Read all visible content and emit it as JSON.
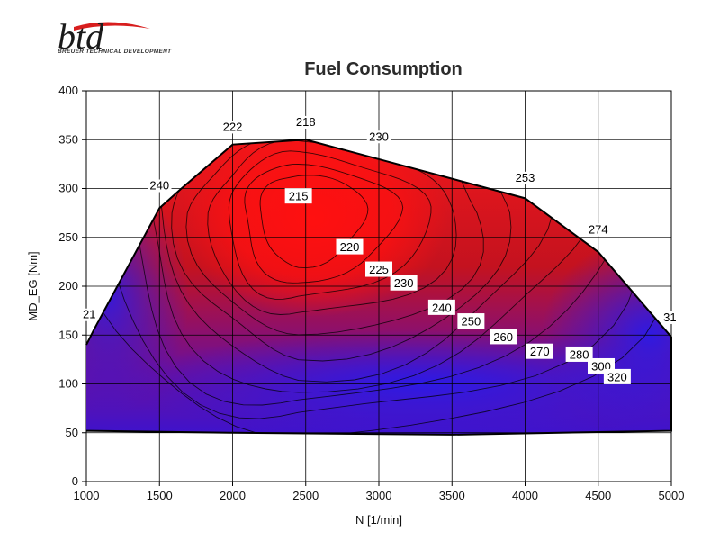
{
  "logo": {
    "mark": "btd",
    "tagline": "BREUER TECHNICAL DEVELOPMENT"
  },
  "chart_data": {
    "type": "heatmap",
    "subtype": "contour-map",
    "title": "Fuel Consumption",
    "xlabel": "N [1/min]",
    "ylabel": "MD_EG [Nm]",
    "xlim": [
      1000,
      5000
    ],
    "ylim": [
      0,
      400
    ],
    "x_ticks": [
      1000,
      1500,
      2000,
      2500,
      3000,
      3500,
      4000,
      4500,
      5000
    ],
    "y_ticks": [
      0,
      50,
      100,
      150,
      200,
      250,
      300,
      350,
      400
    ],
    "grid": true,
    "colors": {
      "low": "#ff1a1a",
      "mid": "#8c0f8a",
      "high": "#1a1aff",
      "outline": "#000000"
    },
    "full_load_curve": [
      {
        "x": 1000,
        "y": 140
      },
      {
        "x": 1050,
        "y": 155
      },
      {
        "x": 1500,
        "y": 280
      },
      {
        "x": 1650,
        "y": 300
      },
      {
        "x": 2000,
        "y": 345
      },
      {
        "x": 2500,
        "y": 350
      },
      {
        "x": 3000,
        "y": 330
      },
      {
        "x": 3500,
        "y": 310
      },
      {
        "x": 4000,
        "y": 290
      },
      {
        "x": 4500,
        "y": 235
      },
      {
        "x": 5000,
        "y": 148
      }
    ],
    "min_load_curve": [
      {
        "x": 1000,
        "y": 52
      },
      {
        "x": 2000,
        "y": 50
      },
      {
        "x": 3500,
        "y": 48
      },
      {
        "x": 5000,
        "y": 52
      }
    ],
    "contour_levels": [
      215,
      220,
      225,
      230,
      240,
      250,
      260,
      270,
      280,
      300,
      320
    ],
    "contour_labels": [
      {
        "text": "215",
        "x": 2450,
        "y": 292
      },
      {
        "text": "220",
        "x": 2800,
        "y": 240
      },
      {
        "text": "225",
        "x": 3000,
        "y": 217
      },
      {
        "text": "230",
        "x": 3170,
        "y": 203
      },
      {
        "text": "240",
        "x": 3430,
        "y": 178
      },
      {
        "text": "250",
        "x": 3630,
        "y": 164
      },
      {
        "text": "260",
        "x": 3850,
        "y": 148
      },
      {
        "text": "270",
        "x": 4100,
        "y": 133
      },
      {
        "text": "280",
        "x": 4370,
        "y": 130
      },
      {
        "text": "300",
        "x": 4520,
        "y": 118
      },
      {
        "text": "320",
        "x": 4630,
        "y": 107
      }
    ],
    "full_load_labels": [
      {
        "text": "21",
        "x": 1020,
        "y": 168
      },
      {
        "text": "240",
        "x": 1500,
        "y": 300
      },
      {
        "text": "222",
        "x": 2000,
        "y": 360
      },
      {
        "text": "218",
        "x": 2500,
        "y": 365
      },
      {
        "text": "230",
        "x": 3000,
        "y": 350
      },
      {
        "text": "253",
        "x": 4000,
        "y": 308
      },
      {
        "text": "274",
        "x": 4500,
        "y": 255
      },
      {
        "text": "31",
        "x": 4990,
        "y": 165
      }
    ]
  }
}
